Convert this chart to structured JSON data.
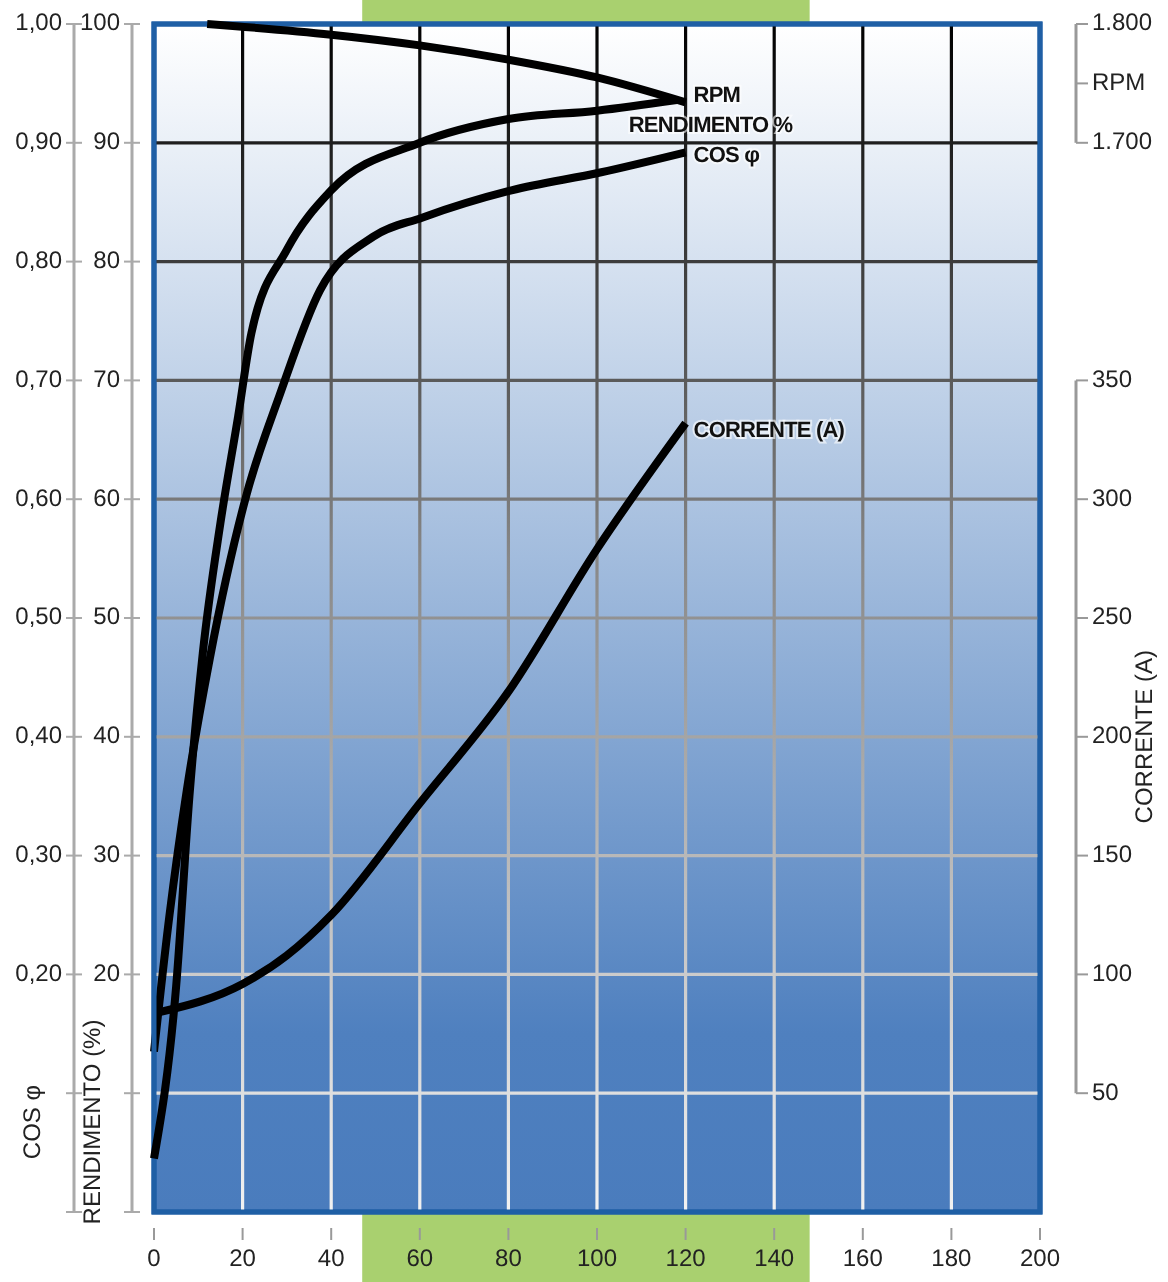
{
  "chart_data": [
    {
      "type": "line",
      "xlim": [
        0,
        200
      ],
      "xticks": [
        0,
        20,
        40,
        60,
        80,
        100,
        120,
        140,
        160,
        180,
        200
      ],
      "ylabel": "COS φ",
      "ylim": [
        0,
        1
      ],
      "yticks": [
        {
          "value": 1,
          "label": "1,00"
        },
        {
          "value": 0.9,
          "label": "0,90"
        },
        {
          "value": 0.8,
          "label": "0,80"
        },
        {
          "value": 0.7,
          "label": "0,70"
        },
        {
          "value": 0.6,
          "label": "0,60"
        },
        {
          "value": 0.5,
          "label": "0,50"
        },
        {
          "value": 0.4,
          "label": "0,40"
        },
        {
          "value": 0.3,
          "label": "0,30"
        },
        {
          "value": 0.2,
          "label": "0,20"
        },
        {
          "value": 0.1,
          "label": null
        },
        {
          "value": 0,
          "label": null
        }
      ],
      "y2label": "CORRENTE (A)",
      "y2lim": [
        0,
        500
      ],
      "y2ticks": [
        50,
        100,
        150,
        200,
        250,
        300,
        350
      ],
      "grid": true,
      "legend": false,
      "marker": "none",
      "line_style": "solid",
      "bands": [
        {
          "axis": "x",
          "from": 47,
          "to": 148,
          "color": "#a9d06f"
        }
      ],
      "series": [
        {
          "name": "COS φ",
          "color": "#000000",
          "x": [
            0,
            3.5,
            7.4,
            12.6,
            20.9,
            28.4,
            37.5,
            49.5,
            60.5,
            80.7,
            100.7,
            120
          ],
          "values": [
            0.135,
            0.25,
            0.355,
            0.466,
            0.604,
            0.688,
            0.776,
            0.821,
            0.837,
            0.86,
            0.875,
            0.892
          ]
        },
        {
          "name": "CORRENTE (A)",
          "color": "#000000",
          "axis": "y2",
          "x": [
            1,
            20,
            30,
            40,
            60,
            80,
            100,
            120
          ],
          "values": [
            84,
            96,
            108,
            125,
            172,
            219,
            279,
            332
          ]
        }
      ]
    },
    {
      "type": "line",
      "tick_labels": "y",
      "xlim": [
        0,
        200
      ],
      "ylabel": "RENDIMENTO (%)",
      "ylim": [
        0,
        100
      ],
      "yticks": [
        100,
        90,
        80,
        70,
        60,
        50,
        40,
        30,
        20,
        {
          "value": 10,
          "label": null
        },
        {
          "value": 0,
          "label": null
        }
      ],
      "y2label": "RPM",
      "y2lim": [
        800,
        1800
      ],
      "y2ticks": [
        {
          "value": 1800,
          "label": "1.800"
        },
        {
          "value": 1700,
          "label": "1.700"
        }
      ],
      "legend": false,
      "marker": "none",
      "line_style": "solid",
      "series": [
        {
          "name": "RENDIMENTO %",
          "color": "#000000",
          "x": [
            0,
            5,
            8,
            11,
            15,
            19,
            22,
            30,
            40,
            60,
            80,
            100,
            118
          ],
          "values": [
            4.5,
            19,
            35,
            47,
            58,
            67,
            74,
            81,
            86,
            90,
            92,
            92.7,
            93.6
          ]
        },
        {
          "name": "RPM",
          "color": "#000000",
          "axis": "y2",
          "x": [
            12,
            40,
            60,
            80,
            100,
            120
          ],
          "values": [
            1800,
            1791,
            1782,
            1770,
            1755,
            1734
          ]
        }
      ]
    }
  ]
}
